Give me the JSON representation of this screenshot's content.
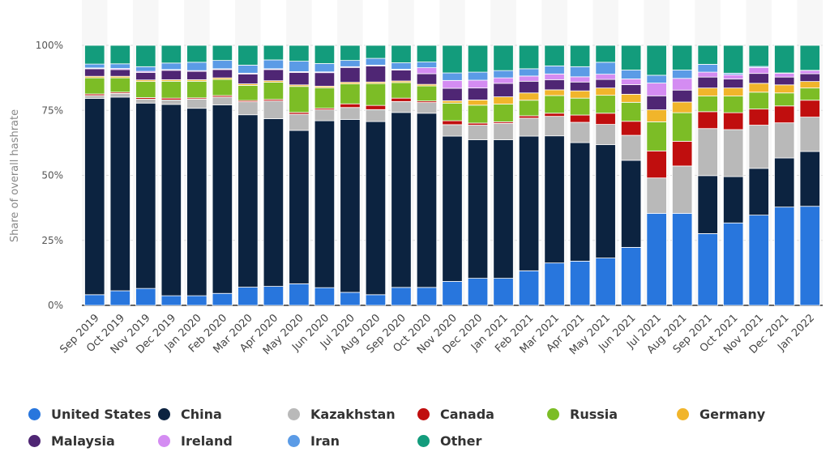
{
  "chart_data": {
    "type": "bar",
    "stacked": true,
    "ylabel": "Share of overall hashrate",
    "xlabel": "",
    "ylim": [
      0,
      100
    ],
    "yticks": [
      "0%",
      "25%",
      "50%",
      "75%",
      "100%"
    ],
    "grid": true,
    "legend_position": "bottom",
    "categories": [
      "Sep 2019",
      "Oct 2019",
      "Nov 2019",
      "Dec 2019",
      "Jan 2020",
      "Feb 2020",
      "Mar 2020",
      "Apr 2020",
      "May 2020",
      "Jun 2020",
      "Jul 2020",
      "Aug 2020",
      "Sep 2020",
      "Oct 2020",
      "Nov 2020",
      "Dec 2020",
      "Jan 2021",
      "Feb 2021",
      "Mar 2021",
      "Apr 2021",
      "May 2021",
      "Jun 2021",
      "Jul 2021",
      "Aug 2021",
      "Sep 2021",
      "Oct 2021",
      "Nov 2021",
      "Dec 2021",
      "Jan 2022"
    ],
    "series": [
      {
        "name": "United States",
        "color": "#2876dd",
        "values": [
          4.1,
          5.6,
          6.5,
          3.7,
          3.7,
          4.6,
          7.0,
          7.3,
          8.3,
          6.8,
          5.0,
          4.1,
          6.9,
          6.9,
          9.2,
          10.4,
          10.4,
          13.3,
          16.3,
          17.0,
          18.2,
          22.3,
          35.4,
          35.4,
          27.6,
          31.7,
          34.7,
          37.8,
          38.1
        ]
      },
      {
        "name": "China",
        "color": "#0c2340",
        "values": [
          75.5,
          74.5,
          71.3,
          73.6,
          72.1,
          72.5,
          66.3,
          64.5,
          59.0,
          64.2,
          66.5,
          66.6,
          67.3,
          67.0,
          55.9,
          53.3,
          53.3,
          51.8,
          48.9,
          45.6,
          43.6,
          33.5,
          0,
          0,
          22.3,
          17.8,
          18.0,
          18.9,
          21.1
        ]
      },
      {
        "name": "Kazakhstan",
        "color": "#b9b9b9",
        "values": [
          1.1,
          1.4,
          1.5,
          1.7,
          3.5,
          3.0,
          5.0,
          6.8,
          6.2,
          4.2,
          4.6,
          4.6,
          4.2,
          4.1,
          4.4,
          5.6,
          6.3,
          6.9,
          7.5,
          7.8,
          7.8,
          9.6,
          13.6,
          18.2,
          18.1,
          18.1,
          16.6,
          13.5,
          13.2
        ]
      },
      {
        "name": "Canada",
        "color": "#c00e0e",
        "values": [
          0.6,
          0.5,
          0.6,
          0.7,
          0.5,
          0.6,
          0.5,
          0.6,
          0.7,
          0.6,
          1.4,
          1.6,
          1.3,
          0.6,
          1.5,
          0.8,
          0.6,
          0.9,
          1.2,
          2.8,
          4.3,
          5.4,
          10.4,
          9.5,
          6.5,
          6.5,
          6.2,
          6.5,
          6.5
        ]
      },
      {
        "name": "Russia",
        "color": "#7cbd26",
        "values": [
          6.2,
          5.5,
          6.2,
          6.5,
          6.4,
          6.2,
          5.8,
          6.6,
          10.0,
          7.9,
          7.7,
          8.4,
          6.0,
          5.8,
          6.8,
          6.9,
          6.8,
          6.0,
          6.8,
          6.5,
          6.9,
          7.3,
          11.2,
          11.0,
          6.0,
          6.4,
          6.5,
          5.0,
          4.7
        ]
      },
      {
        "name": "Germany",
        "color": "#f1b52b",
        "values": [
          0.6,
          0.6,
          0.6,
          0.6,
          0.6,
          0.6,
          0.6,
          0.6,
          0.6,
          0.6,
          0.6,
          0.6,
          0.6,
          0.6,
          0.9,
          2.0,
          2.8,
          2.8,
          2.2,
          2.8,
          2.8,
          3.1,
          4.6,
          4.1,
          3.1,
          3.1,
          3.4,
          3.1,
          2.5
        ]
      },
      {
        "name": "Malaysia",
        "color": "#4f2674",
        "values": [
          2.9,
          2.6,
          2.9,
          3.6,
          3.2,
          3.2,
          3.8,
          4.3,
          4.8,
          5.2,
          5.7,
          6.2,
          4.2,
          4.1,
          4.8,
          4.6,
          5.2,
          4.5,
          3.9,
          3.4,
          3.3,
          3.7,
          5.4,
          4.6,
          4.2,
          3.5,
          3.8,
          3.0,
          3.0
        ]
      },
      {
        "name": "Ireland",
        "color": "#d48cf2",
        "values": [
          0.3,
          0.4,
          0.4,
          0.3,
          0.3,
          0.3,
          0.3,
          0.3,
          0.3,
          0.3,
          0.3,
          0.3,
          0.3,
          2.3,
          3.0,
          3.0,
          2.1,
          2.0,
          2.2,
          2.0,
          2.0,
          2.2,
          4.9,
          4.5,
          1.9,
          1.6,
          2.3,
          1.5,
          1.2
        ]
      },
      {
        "name": "Iran",
        "color": "#5b9be6",
        "values": [
          1.5,
          1.8,
          1.8,
          2.5,
          3.2,
          3.2,
          3.1,
          3.4,
          4.0,
          3.2,
          2.4,
          2.6,
          2.5,
          2.2,
          2.9,
          3.1,
          2.8,
          2.8,
          3.1,
          3.9,
          4.6,
          3.4,
          3.0,
          3.2,
          3.0,
          0.6,
          0.4,
          0.1,
          0.1
        ]
      },
      {
        "name": "Other",
        "color": "#139c7c",
        "values": [
          7.2,
          7.1,
          8.2,
          6.8,
          6.5,
          5.8,
          7.6,
          5.6,
          6.1,
          7.0,
          5.8,
          5.0,
          6.7,
          6.4,
          10.6,
          10.3,
          9.7,
          9.0,
          7.9,
          8.2,
          6.5,
          9.5,
          11.5,
          9.5,
          7.3,
          10.7,
          8.1,
          10.6,
          9.6
        ]
      }
    ]
  }
}
